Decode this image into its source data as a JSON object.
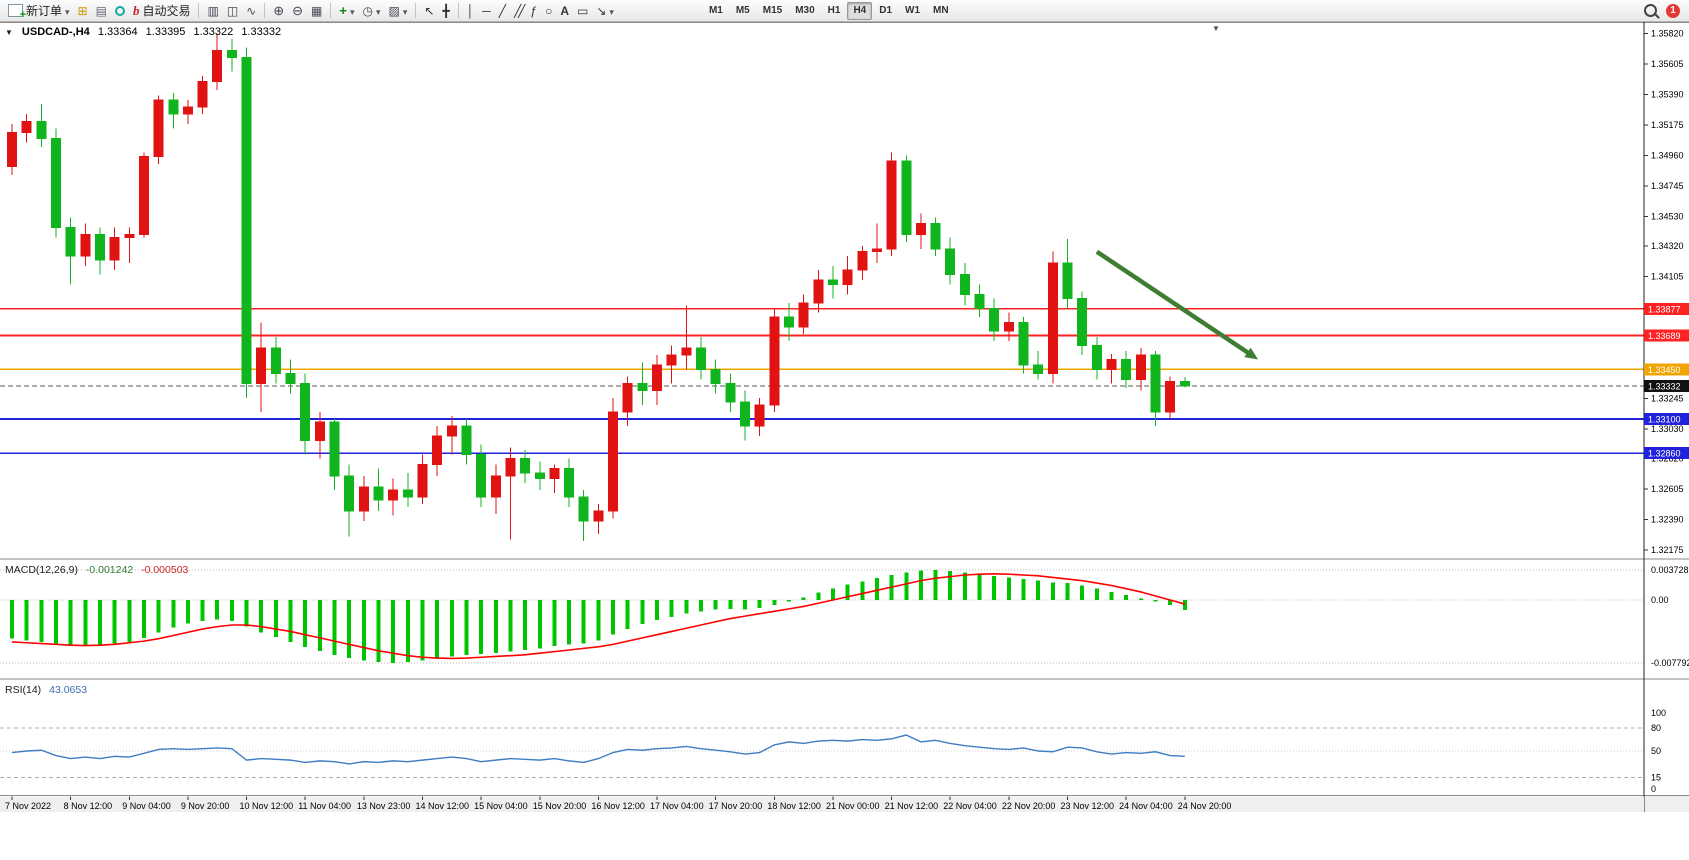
{
  "toolbar": {
    "new_order_label": "新订单",
    "autotrade_label": "自动交易",
    "timeframes": [
      {
        "label": "M1",
        "active": false
      },
      {
        "label": "M5",
        "active": false
      },
      {
        "label": "M15",
        "active": false
      },
      {
        "label": "M30",
        "active": false
      },
      {
        "label": "H1",
        "active": false
      },
      {
        "label": "H4",
        "active": true
      },
      {
        "label": "D1",
        "active": false
      },
      {
        "label": "W1",
        "active": false
      },
      {
        "label": "MN",
        "active": false
      }
    ],
    "notification_count": "1"
  },
  "chart": {
    "title": {
      "symbol": "USDCAD-,H4",
      "open": "1.33364",
      "high": "1.33395",
      "low": "1.33322",
      "close": "1.33332"
    }
  },
  "chart_data": {
    "type": "candlestick",
    "symbol": "USDCAD",
    "timeframe": "H4",
    "price_axis": {
      "ticks": [
        "1.35820",
        "1.35605",
        "1.35390",
        "1.35175",
        "1.34960",
        "1.34745",
        "1.34530",
        "1.34320",
        "1.34105",
        "1.33890",
        "1.33675",
        "1.33460",
        "1.33245",
        "1.33030",
        "1.32820",
        "1.32605",
        "1.32390",
        "1.32175"
      ]
    },
    "time_labels": [
      "7 Nov 2022",
      "8 Nov 12:00",
      "9 Nov 04:00",
      "9 Nov 20:00",
      "10 Nov 12:00",
      "11 Nov 04:00",
      "13 Nov 23:00",
      "14 Nov 12:00",
      "15 Nov 04:00",
      "15 Nov 20:00",
      "16 Nov 12:00",
      "17 Nov 04:00",
      "17 Nov 20:00",
      "18 Nov 12:00",
      "21 Nov 00:00",
      "21 Nov 12:00",
      "22 Nov 04:00",
      "22 Nov 20:00",
      "23 Nov 12:00",
      "24 Nov 04:00",
      "24 Nov 20:00"
    ],
    "candles": [
      [
        1.3488,
        1.3518,
        1.3482,
        1.3512
      ],
      [
        1.3512,
        1.3525,
        1.3505,
        1.352
      ],
      [
        1.352,
        1.3532,
        1.3502,
        1.3508
      ],
      [
        1.3508,
        1.3515,
        1.3438,
        1.3445
      ],
      [
        1.3445,
        1.3452,
        1.3405,
        1.3425
      ],
      [
        1.3425,
        1.3448,
        1.3418,
        1.344
      ],
      [
        1.344,
        1.3445,
        1.3412,
        1.3422
      ],
      [
        1.3422,
        1.3445,
        1.3415,
        1.3438
      ],
      [
        1.3438,
        1.3445,
        1.342,
        1.344
      ],
      [
        1.344,
        1.3498,
        1.3438,
        1.3495
      ],
      [
        1.3495,
        1.3538,
        1.349,
        1.3535
      ],
      [
        1.3535,
        1.354,
        1.3515,
        1.3525
      ],
      [
        1.3525,
        1.3535,
        1.3518,
        1.353
      ],
      [
        1.353,
        1.3552,
        1.3525,
        1.3548
      ],
      [
        1.3548,
        1.3582,
        1.3542,
        1.357
      ],
      [
        1.357,
        1.3578,
        1.3555,
        1.3565
      ],
      [
        1.3565,
        1.3572,
        1.3325,
        1.3335
      ],
      [
        1.3335,
        1.3378,
        1.3315,
        1.336
      ],
      [
        1.336,
        1.3368,
        1.3335,
        1.3342
      ],
      [
        1.3342,
        1.3352,
        1.3328,
        1.3335
      ],
      [
        1.3335,
        1.3342,
        1.3285,
        1.3295
      ],
      [
        1.3295,
        1.3315,
        1.3282,
        1.3308
      ],
      [
        1.3308,
        1.331,
        1.326,
        1.327
      ],
      [
        1.327,
        1.3278,
        1.3227,
        1.3245
      ],
      [
        1.3245,
        1.327,
        1.3238,
        1.3262
      ],
      [
        1.3262,
        1.3275,
        1.3245,
        1.3253
      ],
      [
        1.3253,
        1.3268,
        1.3242,
        1.326
      ],
      [
        1.326,
        1.3272,
        1.3248,
        1.3255
      ],
      [
        1.3255,
        1.3285,
        1.325,
        1.3278
      ],
      [
        1.3278,
        1.3305,
        1.327,
        1.3298
      ],
      [
        1.3298,
        1.3312,
        1.3285,
        1.3305
      ],
      [
        1.3305,
        1.331,
        1.3278,
        1.3285
      ],
      [
        1.3285,
        1.3292,
        1.3248,
        1.3255
      ],
      [
        1.3255,
        1.3278,
        1.3243,
        1.327
      ],
      [
        1.327,
        1.329,
        1.3225,
        1.3282
      ],
      [
        1.3282,
        1.3288,
        1.3265,
        1.3272
      ],
      [
        1.3272,
        1.328,
        1.326,
        1.3268
      ],
      [
        1.3268,
        1.3278,
        1.3258,
        1.3275
      ],
      [
        1.3275,
        1.3282,
        1.3248,
        1.3255
      ],
      [
        1.3255,
        1.326,
        1.3224,
        1.3238
      ],
      [
        1.3238,
        1.325,
        1.3229,
        1.3245
      ],
      [
        1.3245,
        1.3325,
        1.324,
        1.3315
      ],
      [
        1.3315,
        1.334,
        1.3305,
        1.3335
      ],
      [
        1.3335,
        1.335,
        1.332,
        1.333
      ],
      [
        1.333,
        1.3355,
        1.332,
        1.3348
      ],
      [
        1.3348,
        1.3362,
        1.3335,
        1.3355
      ],
      [
        1.3355,
        1.339,
        1.3345,
        1.336
      ],
      [
        1.336,
        1.3368,
        1.3338,
        1.3345
      ],
      [
        1.3345,
        1.3352,
        1.3328,
        1.3335
      ],
      [
        1.3335,
        1.3342,
        1.3315,
        1.3322
      ],
      [
        1.3322,
        1.333,
        1.3295,
        1.3305
      ],
      [
        1.3305,
        1.3325,
        1.3298,
        1.332
      ],
      [
        1.332,
        1.3388,
        1.3315,
        1.3382
      ],
      [
        1.3382,
        1.3392,
        1.3365,
        1.3375
      ],
      [
        1.3375,
        1.3398,
        1.337,
        1.3392
      ],
      [
        1.3392,
        1.3415,
        1.3385,
        1.3408
      ],
      [
        1.3408,
        1.3418,
        1.3395,
        1.3405
      ],
      [
        1.3405,
        1.3425,
        1.3398,
        1.3415
      ],
      [
        1.3415,
        1.3432,
        1.3408,
        1.3428
      ],
      [
        1.3428,
        1.3448,
        1.342,
        1.343
      ],
      [
        1.343,
        1.3498,
        1.3425,
        1.3492
      ],
      [
        1.3492,
        1.3496,
        1.3435,
        1.344
      ],
      [
        1.344,
        1.3455,
        1.343,
        1.3448
      ],
      [
        1.3448,
        1.3452,
        1.3425,
        1.343
      ],
      [
        1.343,
        1.3438,
        1.3405,
        1.3412
      ],
      [
        1.3412,
        1.342,
        1.339,
        1.3398
      ],
      [
        1.3398,
        1.3405,
        1.3382,
        1.3388
      ],
      [
        1.3388,
        1.3395,
        1.3365,
        1.3372
      ],
      [
        1.3372,
        1.3385,
        1.3365,
        1.3378
      ],
      [
        1.3378,
        1.3382,
        1.3342,
        1.3348
      ],
      [
        1.3348,
        1.3358,
        1.3338,
        1.3342
      ],
      [
        1.3342,
        1.3428,
        1.3335,
        1.342
      ],
      [
        1.342,
        1.3437,
        1.3388,
        1.3395
      ],
      [
        1.3395,
        1.34,
        1.3355,
        1.3362
      ],
      [
        1.3362,
        1.3368,
        1.3338,
        1.3345
      ],
      [
        1.3345,
        1.3356,
        1.3335,
        1.3352
      ],
      [
        1.3352,
        1.3358,
        1.3332,
        1.3338
      ],
      [
        1.3338,
        1.336,
        1.333,
        1.3355
      ],
      [
        1.3355,
        1.3358,
        1.3305,
        1.3315
      ],
      [
        1.3315,
        1.334,
        1.331,
        1.33364
      ],
      [
        1.33364,
        1.33395,
        1.33322,
        1.33332
      ]
    ],
    "hlines": [
      {
        "price": 1.33877,
        "color": "#ff2222",
        "label": "1.33877",
        "name": "resistance-line-1"
      },
      {
        "price": 1.33689,
        "color": "#ff2222",
        "label": "1.33689",
        "name": "resistance-line-2"
      },
      {
        "price": 1.3345,
        "color": "#efa400",
        "label": "1.33450",
        "name": "pivot-line"
      },
      {
        "price": 1.331,
        "color": "#2222dd",
        "label": "1.33100",
        "name": "support-line-1"
      },
      {
        "price": 1.3286,
        "color": "#2222dd",
        "label": "1.32860",
        "name": "support-line-2"
      }
    ],
    "bid": {
      "price": 1.33332,
      "label": "1.33332",
      "color": "#111111"
    },
    "arrow": {
      "from": {
        "bar": 74,
        "price": 1.3428
      },
      "to": {
        "bar": 85,
        "price": 1.3352
      },
      "color": "#3e7d32"
    },
    "macd": {
      "label": "MACD(12,26,9)",
      "value_main": "-0.001242",
      "value_signal": "-0.000503",
      "axis": [
        {
          "v": 0.003728,
          "label": "0.003728"
        },
        {
          "v": 0,
          "label": "0.00"
        },
        {
          "v": -0.007792,
          "label": "-0.007792"
        }
      ],
      "main": [
        -0.0048,
        -0.005,
        -0.0052,
        -0.0055,
        -0.0057,
        -0.0057,
        -0.0056,
        -0.0054,
        -0.0052,
        -0.0047,
        -0.004,
        -0.0034,
        -0.0029,
        -0.0026,
        -0.0024,
        -0.0026,
        -0.0033,
        -0.004,
        -0.0046,
        -0.0052,
        -0.0058,
        -0.0063,
        -0.0068,
        -0.0072,
        -0.0075,
        -0.0077,
        -0.007792,
        -0.0077,
        -0.0075,
        -0.0073,
        -0.007,
        -0.0068,
        -0.0067,
        -0.0066,
        -0.0064,
        -0.0062,
        -0.006,
        -0.0057,
        -0.0055,
        -0.0054,
        -0.005,
        -0.0043,
        -0.0036,
        -0.003,
        -0.0025,
        -0.0021,
        -0.0017,
        -0.0014,
        -0.0012,
        -0.0011,
        -0.0012,
        -0.001,
        -0.0006,
        -0.0002,
        0.0003,
        0.0009,
        0.0014,
        0.0019,
        0.0023,
        0.0027,
        0.0031,
        0.0034,
        0.00365,
        0.003728,
        0.0036,
        0.0034,
        0.0032,
        0.003,
        0.0028,
        0.0026,
        0.0024,
        0.0022,
        0.0021,
        0.0018,
        0.0014,
        0.001,
        0.0006,
        0.0002,
        -0.0002,
        -0.0006,
        -0.001242
      ],
      "signal": [
        -0.0052,
        -0.0053,
        -0.0054,
        -0.0055,
        -0.0056,
        -0.00565,
        -0.0056,
        -0.0055,
        -0.0053,
        -0.0051,
        -0.0048,
        -0.0044,
        -0.004,
        -0.0036,
        -0.0033,
        -0.0031,
        -0.0031,
        -0.0033,
        -0.0036,
        -0.0039,
        -0.0043,
        -0.0047,
        -0.0051,
        -0.0055,
        -0.0059,
        -0.0063,
        -0.0066,
        -0.0069,
        -0.0071,
        -0.0072,
        -0.00725,
        -0.0072,
        -0.0071,
        -0.007,
        -0.0069,
        -0.0068,
        -0.0066,
        -0.0064,
        -0.0062,
        -0.006,
        -0.0058,
        -0.0055,
        -0.0051,
        -0.0047,
        -0.0043,
        -0.0039,
        -0.0035,
        -0.0031,
        -0.0027,
        -0.0023,
        -0.002,
        -0.0017,
        -0.0014,
        -0.0011,
        -0.0008,
        -0.0004,
        0.0,
        0.0004,
        0.0008,
        0.0012,
        0.0016,
        0.002,
        0.0024,
        0.0027,
        0.0029,
        0.0031,
        0.0032,
        0.00325,
        0.0032,
        0.0031,
        0.003,
        0.0028,
        0.0026,
        0.0024,
        0.0021,
        0.0018,
        0.0014,
        0.001,
        0.0005,
        0.0,
        -0.000503
      ]
    },
    "rsi": {
      "label": "RSI(14)",
      "value": "43.0653",
      "levels": [
        {
          "v": 100,
          "label": "100",
          "style": "none"
        },
        {
          "v": 80,
          "label": "80",
          "style": "dash"
        },
        {
          "v": 50,
          "label": "50",
          "style": "dot"
        },
        {
          "v": 15,
          "label": "15",
          "style": "dash"
        },
        {
          "v": 0,
          "label": "0",
          "style": "none"
        }
      ],
      "values": [
        48,
        50,
        51,
        44,
        40,
        42,
        40,
        43,
        42,
        47,
        52,
        53,
        52,
        53,
        54,
        53,
        38,
        40,
        39,
        38,
        35,
        37,
        36,
        33,
        36,
        35,
        37,
        36,
        38,
        40,
        42,
        40,
        36,
        38,
        40,
        39,
        38,
        40,
        37,
        35,
        40,
        48,
        52,
        51,
        53,
        54,
        56,
        53,
        51,
        49,
        46,
        48,
        58,
        62,
        60,
        63,
        64,
        63,
        65,
        64,
        66,
        71,
        62,
        64,
        60,
        57,
        55,
        53,
        52,
        54,
        50,
        49,
        55,
        54,
        49,
        46,
        48,
        47,
        49,
        44,
        43.0653
      ]
    },
    "colors": {
      "bull": "#e01212",
      "bear": "#10b41c",
      "macd_hist": "#00c400",
      "macd_signal": "#ff0000",
      "rsi": "#3f7dc4",
      "bid_line": "#555555",
      "axis_text": "#000000",
      "grid_dotted": "#b8b8b8"
    }
  }
}
